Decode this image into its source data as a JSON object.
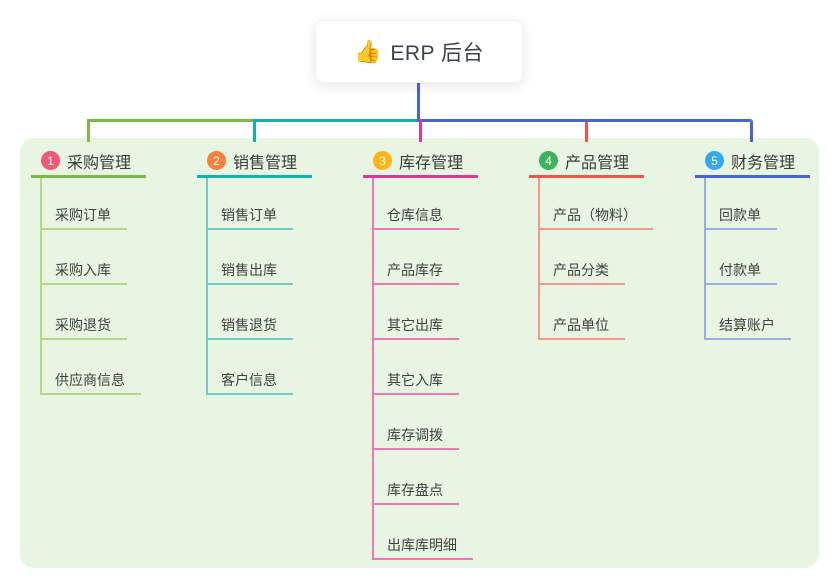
{
  "root": {
    "icon": "👍",
    "icon_name": "thumbs-up",
    "label": "ERP 后台"
  },
  "branches": [
    {
      "num": "1",
      "title": "采购管理",
      "line_color": "#7cbb45",
      "child_line_color": "#b2d98a",
      "badge_color": "#f25776",
      "children": [
        "采购订单",
        "采购入库",
        "采购退货",
        "供应商信息"
      ]
    },
    {
      "num": "2",
      "title": "销售管理",
      "line_color": "#0cb4ae",
      "child_line_color": "#6fccc7",
      "badge_color": "#f5813c",
      "children": [
        "销售订单",
        "销售出库",
        "销售退货",
        "客户信息"
      ]
    },
    {
      "num": "3",
      "title": "库存管理",
      "line_color": "#de3795",
      "child_line_color": "#ee77b4",
      "badge_color": "#fcb515",
      "children": [
        "仓库信息",
        "产品库存",
        "其它出库",
        "其它入库",
        "库存调拨",
        "库存盘点",
        "出库库明细"
      ]
    },
    {
      "num": "4",
      "title": "产品管理",
      "line_color": "#f7524a",
      "child_line_color": "#fa958d",
      "badge_color": "#3eb45a",
      "children": [
        "产品（物料）",
        "产品分类",
        "产品单位"
      ]
    },
    {
      "num": "5",
      "title": "财务管理",
      "line_color": "#4564d8",
      "child_line_color": "#98aee2",
      "badge_color": "#36a9ee",
      "children": [
        "回款单",
        "付款单",
        "结算账户"
      ]
    }
  ],
  "colors": {
    "panel_bg": "#e8f5e3",
    "root_line": "#4564d8",
    "root_text": "#39424e",
    "branch_text": "#3b3b3b",
    "child_text": "#404040"
  }
}
